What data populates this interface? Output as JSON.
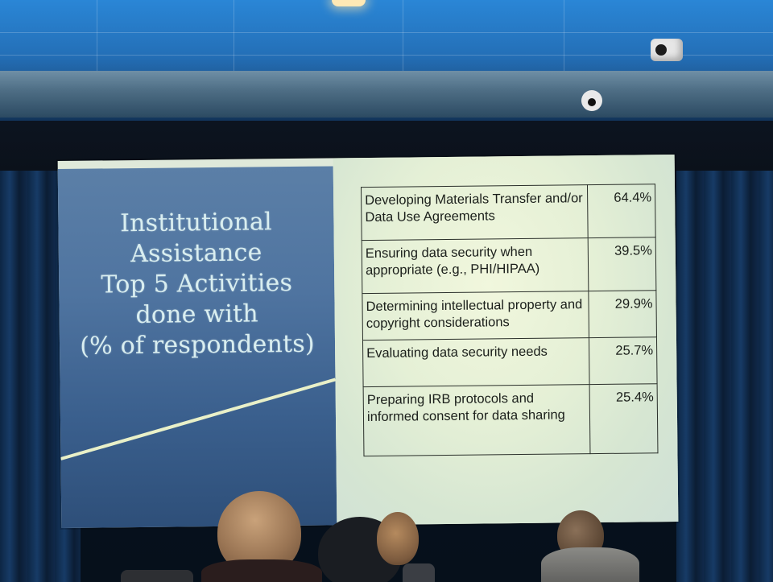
{
  "slide": {
    "title_lines": [
      "Institutional",
      "Assistance",
      "Top 5 Activities",
      "done with",
      "(% of respondents)"
    ],
    "table": {
      "rows": [
        {
          "activity": "Developing Materials Transfer and/or Data Use Agreements",
          "percent": "64.4%"
        },
        {
          "activity": "Ensuring data security when appropriate (e.g., PHI/HIPAA)",
          "percent": "39.5%"
        },
        {
          "activity": "Determining intellectual property and copyright considerations",
          "percent": "29.9%"
        },
        {
          "activity": "Evaluating data security needs",
          "percent": "25.7%"
        },
        {
          "activity": "Preparing IRB protocols and informed consent for data sharing",
          "percent": "25.4%"
        }
      ]
    }
  },
  "colors": {
    "slide_left_bg": "#4f74a0",
    "slide_title_text": "#d9eef0",
    "slide_right_bg": "#e5f0d6",
    "diagonal_line": "#e9f0c8"
  }
}
